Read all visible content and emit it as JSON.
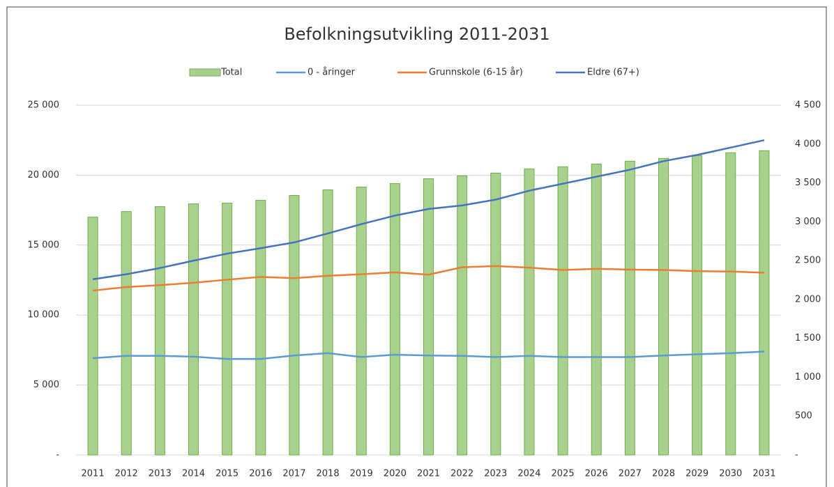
{
  "chart_data": {
    "type": "bar-line",
    "title": "Befolkningsutvikling 2011-2031",
    "categories": [
      "2011",
      "2012",
      "2013",
      "2014",
      "2015",
      "2016",
      "2017",
      "2018",
      "2019",
      "2020",
      "2021",
      "2022",
      "2023",
      "2024",
      "2025",
      "2026",
      "2027",
      "2028",
      "2029",
      "2030",
      "2031"
    ],
    "series": [
      {
        "name": "Total",
        "type": "bar",
        "color": "#a9d18e",
        "values": [
          17000,
          17400,
          17750,
          17950,
          18000,
          18200,
          18550,
          18950,
          19150,
          19400,
          19750,
          19950,
          20150,
          20450,
          20600,
          20800,
          21000,
          21200,
          21400,
          21600,
          21750
        ]
      },
      {
        "name": "0 - åringer",
        "type": "line",
        "axis": "y2",
        "color": "#5b9bd5",
        "values": [
          1245,
          1275,
          1275,
          1265,
          1235,
          1235,
          1280,
          1310,
          1260,
          1290,
          1280,
          1275,
          1260,
          1275,
          1260,
          1260,
          1260,
          1280,
          1295,
          1310,
          1330
        ]
      },
      {
        "name": "Grunnskole (6-15 år)",
        "type": "line",
        "axis": "y2",
        "color": "#ed7d31",
        "values": [
          2115,
          2160,
          2185,
          2215,
          2255,
          2290,
          2275,
          2305,
          2325,
          2350,
          2320,
          2415,
          2430,
          2410,
          2380,
          2395,
          2385,
          2380,
          2365,
          2360,
          2345
        ]
      },
      {
        "name": "Eldre (67+)",
        "type": "line",
        "axis": "y2",
        "color": "#4472c4",
        "values": [
          2260,
          2325,
          2405,
          2500,
          2590,
          2660,
          2735,
          2850,
          2970,
          3080,
          3165,
          3210,
          3285,
          3400,
          3490,
          3580,
          3670,
          3780,
          3860,
          3955,
          4050
        ]
      }
    ],
    "ylim": [
      0,
      25000
    ],
    "yticks": [
      {
        "value": 0,
        "label": "-"
      },
      {
        "value": 5000,
        "label": "5 000"
      },
      {
        "value": 10000,
        "label": "10 000"
      },
      {
        "value": 15000,
        "label": "15 000"
      },
      {
        "value": 20000,
        "label": "20 000"
      },
      {
        "value": 25000,
        "label": "25 000"
      }
    ],
    "y2lim": [
      0,
      4500
    ],
    "y2ticks": [
      {
        "value": 0,
        "label": "-"
      },
      500,
      {
        "value": 1000,
        "label": "1 000"
      },
      {
        "value": 1500,
        "label": "1 500"
      },
      {
        "value": 2000,
        "label": "2 000"
      },
      {
        "value": 2500,
        "label": "2 500"
      },
      {
        "value": 3000,
        "label": "3 000"
      },
      {
        "value": 3500,
        "label": "3 500"
      },
      {
        "value": 4000,
        "label": "4 000"
      },
      {
        "value": 4500,
        "label": "4 500"
      }
    ],
    "grid": true,
    "legend": "top"
  }
}
